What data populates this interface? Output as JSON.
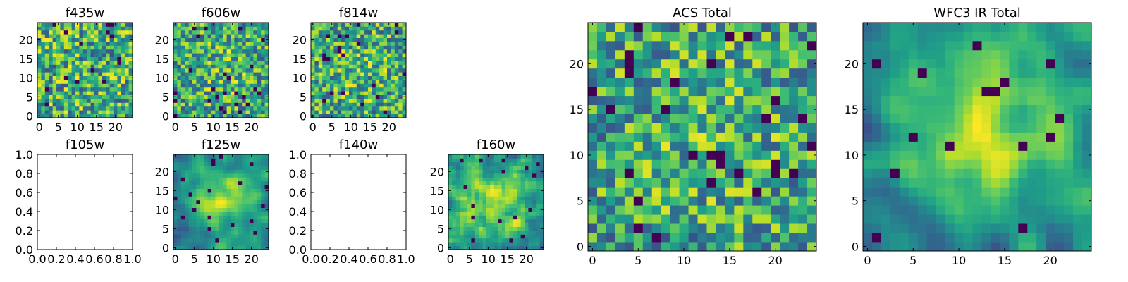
{
  "figure": {
    "description_colormap": "viridis",
    "colors": {
      "low": "#440154",
      "mid": "#21918c",
      "high": "#fde725",
      "frame": "#000000",
      "background": "#ffffff"
    }
  },
  "chart_data": [
    {
      "type": "heatmap",
      "title": "f435w",
      "filled": true,
      "grid_size": 25,
      "xlim": [
        0,
        24
      ],
      "ylim": [
        0,
        24
      ],
      "xticks": [
        0,
        5,
        10,
        15,
        20
      ],
      "yticks": [
        0,
        5,
        10,
        15,
        20
      ],
      "seed": 11,
      "smooth": 0,
      "center_boost": 0.0
    },
    {
      "type": "heatmap",
      "title": "f606w",
      "filled": true,
      "grid_size": 25,
      "xlim": [
        0,
        24
      ],
      "ylim": [
        0,
        24
      ],
      "xticks": [
        0,
        5,
        10,
        15,
        20
      ],
      "yticks": [
        0,
        5,
        10,
        15,
        20
      ],
      "seed": 23,
      "smooth": 0,
      "center_boost": 0.15
    },
    {
      "type": "heatmap",
      "title": "f814w",
      "filled": true,
      "grid_size": 25,
      "xlim": [
        0,
        24
      ],
      "ylim": [
        0,
        24
      ],
      "xticks": [
        0,
        5,
        10,
        15,
        20
      ],
      "yticks": [
        0,
        5,
        10,
        15,
        20
      ],
      "seed": 37,
      "smooth": 0,
      "center_boost": 0.1
    },
    {
      "type": "heatmap",
      "title": "f105w",
      "filled": false,
      "xlim": [
        0.0,
        1.0
      ],
      "ylim": [
        0.0,
        1.0
      ],
      "xticks": [
        "0.0",
        "0.2",
        "0.4",
        "0.6",
        "0.8",
        "1.0"
      ],
      "yticks": [
        "0.0",
        "0.2",
        "0.4",
        "0.6",
        "0.8",
        "1.0"
      ]
    },
    {
      "type": "heatmap",
      "title": "f125w",
      "filled": true,
      "grid_size": 25,
      "xlim": [
        0,
        24
      ],
      "ylim": [
        0,
        24
      ],
      "xticks": [
        0,
        5,
        10,
        15,
        20
      ],
      "yticks": [
        0,
        5,
        10,
        15,
        20
      ],
      "seed": 41,
      "smooth": 2,
      "center_boost": 0.35
    },
    {
      "type": "heatmap",
      "title": "f140w",
      "filled": false,
      "xlim": [
        0.0,
        1.0
      ],
      "ylim": [
        0.0,
        1.0
      ],
      "xticks": [
        "0.0",
        "0.2",
        "0.4",
        "0.6",
        "0.8",
        "1.0"
      ],
      "yticks": [
        "0.0",
        "0.2",
        "0.4",
        "0.6",
        "0.8",
        "1.0"
      ]
    },
    {
      "type": "heatmap",
      "title": "f160w",
      "filled": true,
      "grid_size": 25,
      "xlim": [
        0,
        24
      ],
      "ylim": [
        0,
        24
      ],
      "xticks": [
        0,
        5,
        10,
        15,
        20
      ],
      "yticks": [
        0,
        5,
        10,
        15,
        20
      ],
      "seed": 53,
      "smooth": 1,
      "center_boost": 0.3
    },
    {
      "type": "heatmap",
      "title": "ACS Total",
      "filled": true,
      "grid_size": 25,
      "xlim": [
        0,
        24
      ],
      "ylim": [
        0,
        24
      ],
      "xticks": [
        0,
        5,
        10,
        15,
        20
      ],
      "yticks": [
        0,
        5,
        10,
        15,
        20
      ],
      "seed": 67,
      "smooth": 0,
      "center_boost": 0.15
    },
    {
      "type": "heatmap",
      "title": "WFC3 IR Total",
      "filled": true,
      "grid_size": 25,
      "xlim": [
        0,
        24
      ],
      "ylim": [
        0,
        24
      ],
      "xticks": [
        0,
        5,
        10,
        15,
        20
      ],
      "yticks": [
        0,
        5,
        10,
        15,
        20
      ],
      "seed": 79,
      "smooth": 2,
      "center_boost": 0.4
    }
  ]
}
